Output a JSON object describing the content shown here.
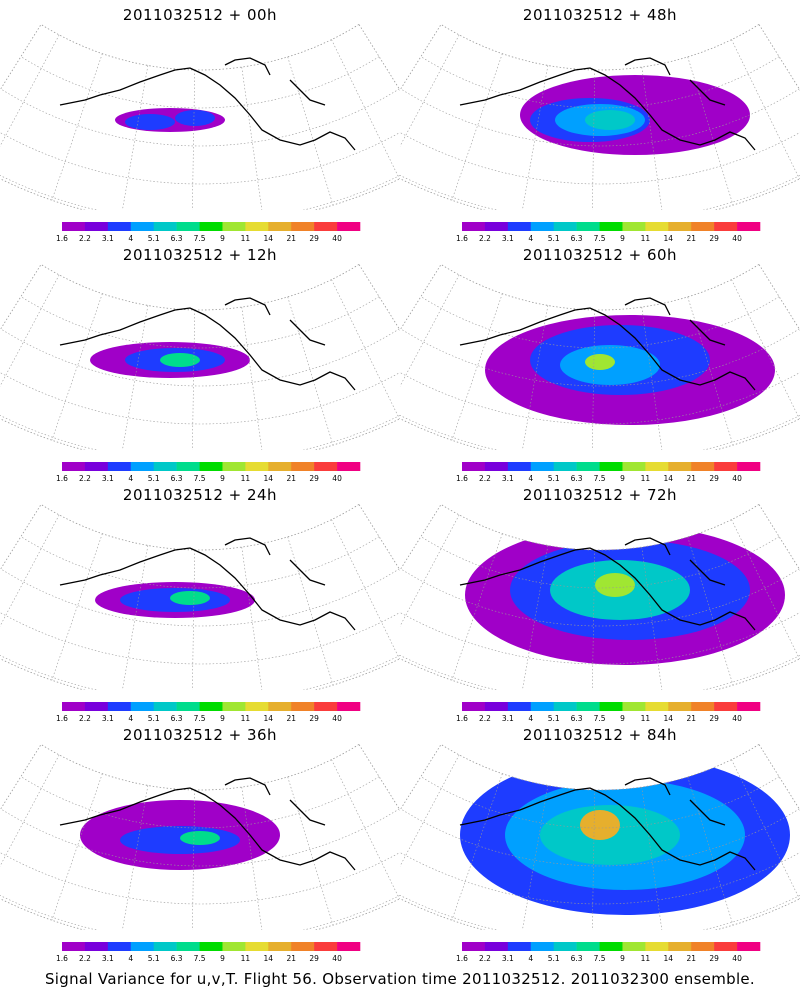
{
  "panels": [
    {
      "title": "2011032512 + 00h"
    },
    {
      "title": "2011032512 + 48h"
    },
    {
      "title": "2011032512 + 12h"
    },
    {
      "title": "2011032512 + 60h"
    },
    {
      "title": "2011032512 + 24h"
    },
    {
      "title": "2011032512 + 72h"
    },
    {
      "title": "2011032512 + 36h"
    },
    {
      "title": "2011032512 + 84h"
    }
  ],
  "colorbar": {
    "labels": [
      "1.6",
      "2.2",
      "3.1",
      "4",
      "5.1",
      "6.3",
      "7.5",
      "9",
      "11",
      "14",
      "21",
      "29",
      "40"
    ],
    "colors": [
      "#a000c8",
      "#7800dc",
      "#1e3cff",
      "#00a0ff",
      "#00c8c8",
      "#00dc8c",
      "#00dc00",
      "#a0e632",
      "#e6dc32",
      "#e6af2d",
      "#f08228",
      "#fa3c3c",
      "#f00082"
    ]
  },
  "footer": "Signal Variance for u,v,T. Flight 56. Observation time 2011032512. 2011032300 ensemble."
}
